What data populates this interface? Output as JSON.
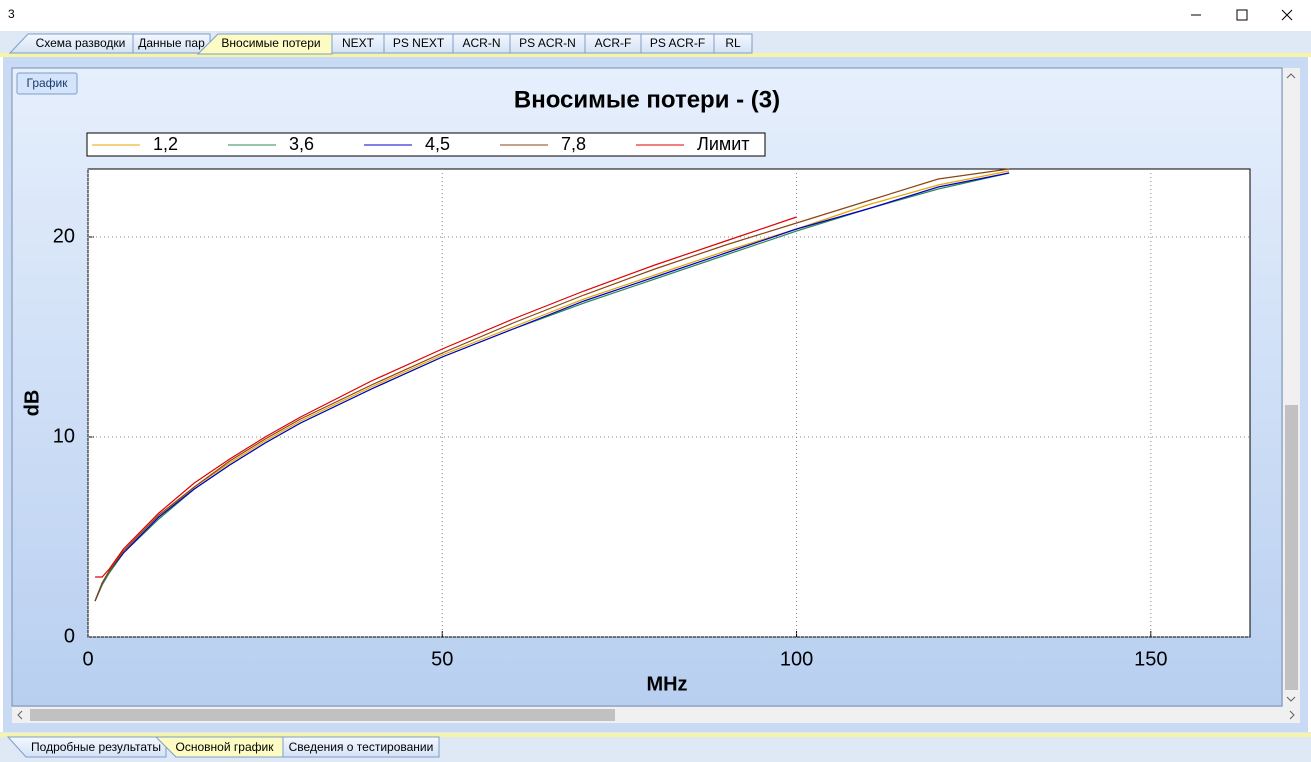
{
  "window": {
    "title": "3"
  },
  "tabs": [
    "Схема разводки",
    "Данные пар",
    "Вносимые потери",
    "NEXT",
    "PS NEXT",
    "ACR-N",
    "PS ACR-N",
    "ACR-F",
    "PS ACR-F",
    "RL"
  ],
  "active_tab": 2,
  "button": "График",
  "bottom_tabs": [
    "Подробные результаты",
    "Основной график",
    "Сведения о тестировании"
  ],
  "bottom_active_tab": 1,
  "chart_data": {
    "type": "line",
    "title": "Вносимые потери - (3)",
    "x_label": "MHz",
    "y_label": "dB",
    "x": [
      1,
      2,
      3,
      5,
      10,
      15,
      20,
      25,
      30,
      40,
      50,
      60,
      70,
      80,
      90,
      100,
      110,
      120,
      130
    ],
    "series": [
      {
        "name": "1,2",
        "color": "#e8a400",
        "values": [
          1.8,
          2.7,
          3.3,
          4.2,
          6.0,
          7.5,
          8.7,
          9.8,
          10.8,
          12.5,
          14.1,
          15.5,
          16.9,
          18.1,
          19.3,
          20.4,
          21.6,
          22.6,
          23.3
        ]
      },
      {
        "name": "3,6",
        "color": "#2e8b57",
        "values": [
          1.8,
          2.6,
          3.2,
          4.2,
          5.9,
          7.4,
          8.6,
          9.7,
          10.7,
          12.4,
          14.0,
          15.4,
          16.7,
          17.9,
          19.1,
          20.3,
          21.4,
          22.4,
          23.2
        ]
      },
      {
        "name": "4,5",
        "color": "#0000cc",
        "values": [
          1.8,
          2.7,
          3.3,
          4.2,
          6.0,
          7.4,
          8.6,
          9.7,
          10.7,
          12.4,
          14.0,
          15.4,
          16.8,
          18.0,
          19.2,
          20.4,
          21.4,
          22.5,
          23.2
        ]
      },
      {
        "name": "7,8",
        "color": "#8b4513",
        "values": [
          1.8,
          2.7,
          3.3,
          4.3,
          6.1,
          7.5,
          8.8,
          9.9,
          10.9,
          12.6,
          14.2,
          15.7,
          17.1,
          18.4,
          19.6,
          20.7,
          21.8,
          22.9,
          23.4
        ]
      },
      {
        "name": "Лимит",
        "color": "#e00000",
        "values": [
          3.0,
          3.0,
          3.4,
          4.4,
          6.2,
          7.7,
          8.9,
          10.0,
          11.0,
          12.8,
          14.4,
          15.9,
          17.3,
          18.6,
          19.8,
          21.0,
          null,
          null,
          null
        ]
      }
    ],
    "xlim": [
      0,
      164
    ],
    "ylim": [
      0,
      23.4
    ],
    "xticks": [
      0,
      50,
      100,
      150
    ],
    "yticks": [
      0,
      10,
      20
    ],
    "grid": true
  }
}
